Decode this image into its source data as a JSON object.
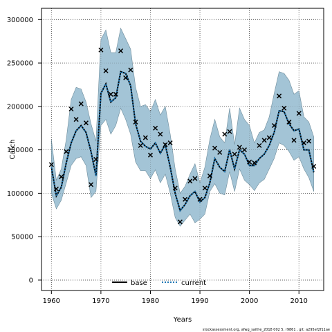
{
  "chart_data": {
    "type": "line",
    "xlabel": "Years",
    "ylabel": "Catch",
    "xlim": [
      1958,
      2015
    ],
    "ylim": [
      -12000,
      313000
    ],
    "xticks": [
      1960,
      1970,
      1980,
      1990,
      2000,
      2010
    ],
    "yticks": [
      0,
      50000,
      100000,
      150000,
      200000,
      250000,
      300000
    ],
    "grid": true,
    "legend_position": "bottom-center",
    "years": [
      1960,
      1961,
      1962,
      1963,
      1964,
      1965,
      1966,
      1967,
      1968,
      1969,
      1970,
      1971,
      1972,
      1973,
      1974,
      1975,
      1976,
      1977,
      1978,
      1979,
      1980,
      1981,
      1982,
      1983,
      1984,
      1985,
      1986,
      1987,
      1988,
      1989,
      1990,
      1991,
      1992,
      1993,
      1994,
      1995,
      1996,
      1997,
      1998,
      1999,
      2000,
      2001,
      2002,
      2003,
      2004,
      2005,
      2006,
      2007,
      2008,
      2009,
      2010,
      2011,
      2012,
      2013
    ],
    "series": [
      {
        "name": "base",
        "style": "solid",
        "color": "#000000",
        "values": []
      },
      {
        "name": "current",
        "style": "dotted",
        "color": "#1f77b4",
        "values": [
          130000,
          97000,
          107000,
          135000,
          158000,
          172000,
          178000,
          170000,
          148000,
          120000,
          215000,
          226000,
          205000,
          210000,
          240000,
          238000,
          224000,
          180000,
          160000,
          154000,
          151000,
          158000,
          146000,
          156000,
          130000,
          100000,
          80000,
          87000,
          97000,
          102000,
          90000,
          95000,
          112000,
          140000,
          130000,
          125000,
          150000,
          128000,
          150000,
          145000,
          132000,
          132000,
          140000,
          145000,
          155000,
          170000,
          195000,
          194000,
          180000,
          172000,
          174000,
          150000,
          150000,
          124000
        ]
      }
    ],
    "ci_band": {
      "lower": [
        100000,
        82000,
        92000,
        112000,
        132000,
        140000,
        142000,
        132000,
        95000,
        102000,
        178000,
        185000,
        168000,
        178000,
        198000,
        185000,
        168000,
        136000,
        126000,
        126000,
        117000,
        127000,
        112000,
        122000,
        100000,
        72000,
        62000,
        69000,
        76000,
        66000,
        70000,
        76000,
        102000,
        111000,
        100000,
        98000,
        125000,
        102000,
        128000,
        115000,
        110000,
        103000,
        112000,
        116000,
        128000,
        140000,
        158000,
        155000,
        148000,
        138000,
        142000,
        128000,
        118000,
        102000
      ],
      "upper": [
        162000,
        115000,
        128000,
        162000,
        208000,
        222000,
        220000,
        205000,
        180000,
        160000,
        277000,
        288000,
        262000,
        262000,
        290000,
        278000,
        266000,
        222000,
        200000,
        202000,
        194000,
        208000,
        190000,
        200000,
        168000,
        128000,
        100000,
        108000,
        122000,
        134000,
        112000,
        130000,
        162000,
        185000,
        165000,
        158000,
        198000,
        156000,
        198000,
        185000,
        178000,
        158000,
        170000,
        173000,
        188000,
        215000,
        240000,
        238000,
        230000,
        214000,
        218000,
        188000,
        182000,
        165000
      ]
    },
    "observed": {
      "marker": "x",
      "values": [
        133000,
        105000,
        119000,
        148000,
        197000,
        185000,
        203000,
        181000,
        110000,
        139000,
        265000,
        241000,
        214000,
        214000,
        264000,
        233000,
        242000,
        182000,
        155000,
        164000,
        144000,
        175000,
        168000,
        156000,
        158000,
        106000,
        67000,
        93000,
        114000,
        117000,
        93000,
        106000,
        120000,
        152000,
        147000,
        168000,
        171000,
        145000,
        153000,
        150000,
        136000,
        135000,
        155000,
        161000,
        164000,
        178000,
        212000,
        198000,
        182000,
        161000,
        192000,
        158000,
        160000,
        131000
      ]
    },
    "footer": "stockassessment.org, afwg_saithe_2018 002 5, r9861 , git: a295ef2f11ae"
  }
}
